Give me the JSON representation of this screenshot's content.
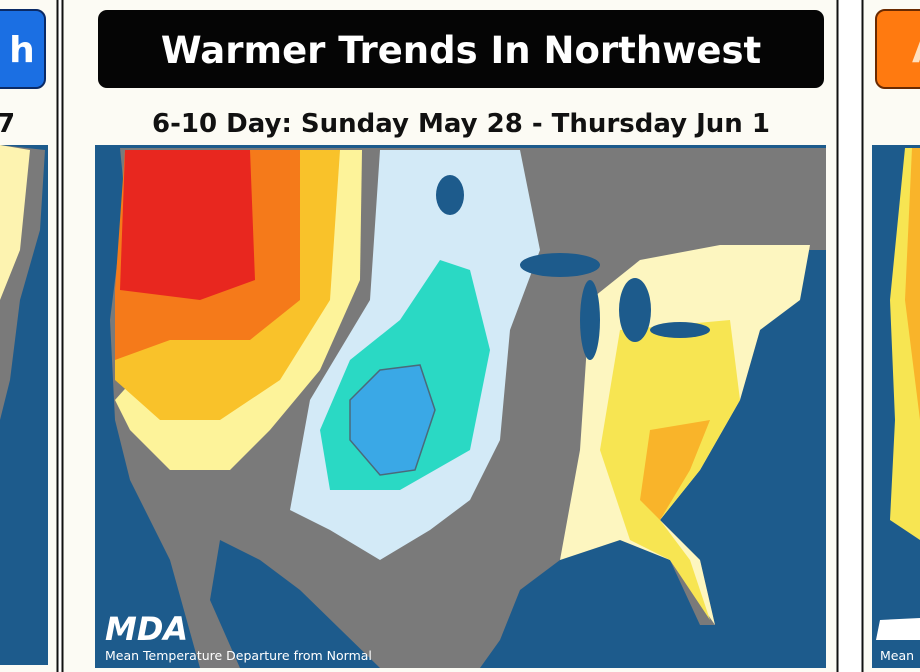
{
  "cards": [
    {
      "title": "h",
      "subtitle": "7"
    },
    {
      "title": "Warmer Trends In Northwest",
      "subtitle": "6-10 Day: Sunday May 28 - Thursday Jun 1",
      "logo": "MDA",
      "caption": "Mean Temperature Departure from Normal"
    },
    {
      "title": "A",
      "caption": "Mean"
    }
  ]
}
